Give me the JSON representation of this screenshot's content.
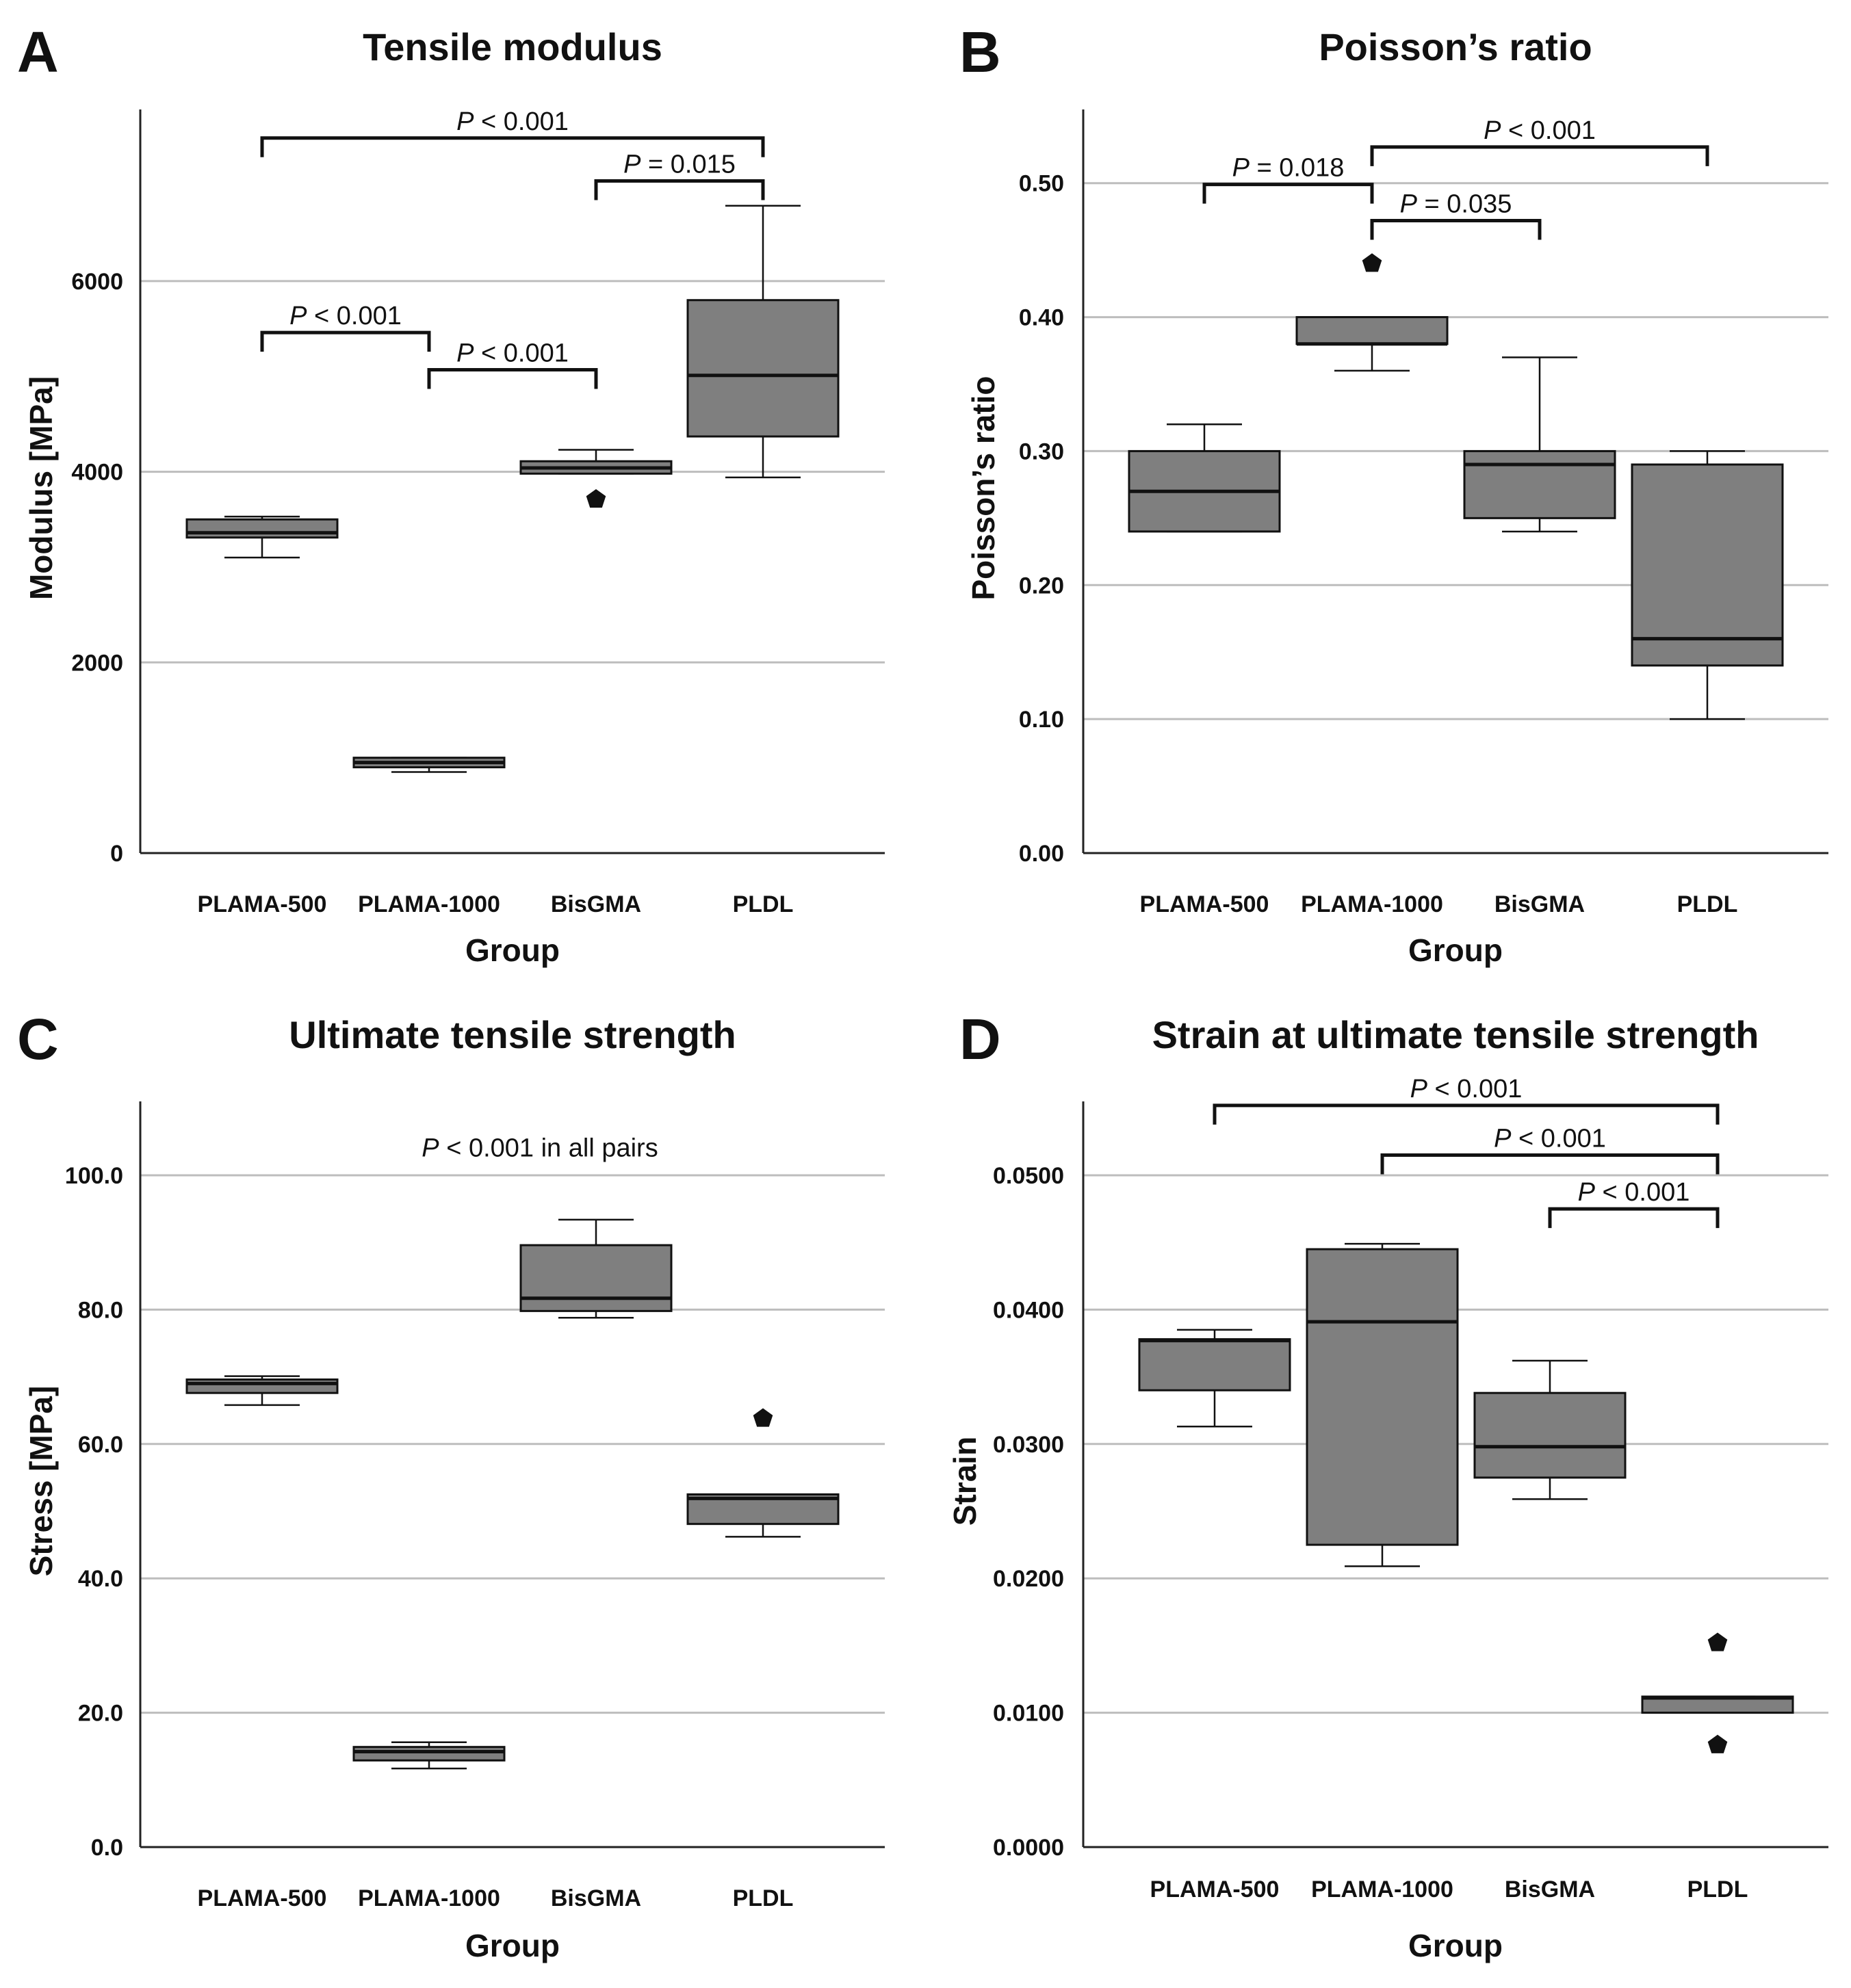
{
  "chart_data": [
    {
      "panel": "A",
      "type": "box",
      "title": "Tensile modulus",
      "xlabel": "Group",
      "ylabel": "Modulus [MPa]",
      "ylim": [
        0,
        7800
      ],
      "yticks": [
        0,
        2000,
        4000,
        6000
      ],
      "ytick_labels": [
        "0",
        "2000",
        "4000",
        "6000"
      ],
      "grid": true,
      "categories": [
        "PLAMA-500",
        "PLAMA-1000",
        "BisGMA",
        "PLDL"
      ],
      "boxes": [
        {
          "category": "PLAMA-500",
          "whisker_low": 3100,
          "q1": 3310,
          "median": 3360,
          "q3": 3500,
          "whisker_high": 3530,
          "outliers": []
        },
        {
          "category": "PLAMA-1000",
          "whisker_low": 850,
          "q1": 900,
          "median": 950,
          "q3": 1000,
          "whisker_high": 1000,
          "outliers": []
        },
        {
          "category": "BisGMA",
          "whisker_low": 3980,
          "q1": 3980,
          "median": 4040,
          "q3": 4110,
          "whisker_high": 4230,
          "outliers": [
            3710
          ]
        },
        {
          "category": "PLDL",
          "whisker_low": 3940,
          "q1": 4370,
          "median": 5010,
          "q3": 5800,
          "whisker_high": 6790,
          "outliers": []
        }
      ],
      "annotations": [
        {
          "from": "PLAMA-500",
          "to": "PLDL",
          "level": 7500,
          "label_prefix": "P",
          "label_rest": " < 0.001"
        },
        {
          "from": "BisGMA",
          "to": "PLDL",
          "level": 7050,
          "label_prefix": "P",
          "label_rest": " = 0.015"
        },
        {
          "from": "PLAMA-500",
          "to": "PLAMA-1000",
          "level": 5460,
          "label_prefix": "P",
          "label_rest": " < 0.001"
        },
        {
          "from": "PLAMA-1000",
          "to": "BisGMA",
          "level": 5070,
          "label_prefix": "P",
          "label_rest": " < 0.001"
        }
      ],
      "note": null
    },
    {
      "panel": "B",
      "type": "box",
      "title": "Poisson’s ratio",
      "xlabel": "Group",
      "ylabel": "Poisson’s ratio",
      "ylim": [
        0,
        0.555
      ],
      "yticks": [
        0,
        0.1,
        0.2,
        0.3,
        0.4,
        0.5
      ],
      "ytick_labels": [
        "0.00",
        "0.10",
        "0.20",
        "0.30",
        "0.40",
        "0.50"
      ],
      "grid": true,
      "categories": [
        "PLAMA-500",
        "PLAMA-1000",
        "BisGMA",
        "PLDL"
      ],
      "boxes": [
        {
          "category": "PLAMA-500",
          "whisker_low": 0.24,
          "q1": 0.24,
          "median": 0.27,
          "q3": 0.3,
          "whisker_high": 0.32,
          "outliers": []
        },
        {
          "category": "PLAMA-1000",
          "whisker_low": 0.36,
          "q1": 0.38,
          "median": 0.38,
          "q3": 0.4,
          "whisker_high": 0.4,
          "outliers": [
            0.44
          ]
        },
        {
          "category": "BisGMA",
          "whisker_low": 0.24,
          "q1": 0.25,
          "median": 0.29,
          "q3": 0.3,
          "whisker_high": 0.37,
          "outliers": []
        },
        {
          "category": "PLDL",
          "whisker_low": 0.1,
          "q1": 0.14,
          "median": 0.16,
          "q3": 0.29,
          "whisker_high": 0.3,
          "outliers": []
        }
      ],
      "annotations": [
        {
          "from": "PLAMA-1000",
          "to": "PLDL",
          "level": 0.527,
          "label_prefix": "P",
          "label_rest": " < 0.001"
        },
        {
          "from": "PLAMA-500",
          "to": "PLAMA-1000",
          "level": 0.499,
          "label_prefix": "P",
          "label_rest": " = 0.018"
        },
        {
          "from": "PLAMA-1000",
          "to": "BisGMA",
          "level": 0.472,
          "label_prefix": "P",
          "label_rest": " = 0.035"
        }
      ],
      "note": null
    },
    {
      "panel": "C",
      "type": "box",
      "title": "Ultimate tensile strength",
      "xlabel": "Group",
      "ylabel": "Stress [MPa]",
      "ylim": [
        0,
        111
      ],
      "yticks": [
        0,
        20,
        40,
        60,
        80,
        100
      ],
      "ytick_labels": [
        "0.0",
        "20.0",
        "40.0",
        "60.0",
        "80.0",
        "100.0"
      ],
      "grid": true,
      "categories": [
        "PLAMA-500",
        "PLAMA-1000",
        "BisGMA",
        "PLDL"
      ],
      "boxes": [
        {
          "category": "PLAMA-500",
          "whisker_low": 65.8,
          "q1": 67.6,
          "median": 69.0,
          "q3": 69.6,
          "whisker_high": 70.1,
          "outliers": []
        },
        {
          "category": "PLAMA-1000",
          "whisker_low": 11.7,
          "q1": 12.9,
          "median": 14.2,
          "q3": 14.9,
          "whisker_high": 15.6,
          "outliers": []
        },
        {
          "category": "BisGMA",
          "whisker_low": 78.8,
          "q1": 79.8,
          "median": 81.7,
          "q3": 89.6,
          "whisker_high": 93.4,
          "outliers": []
        },
        {
          "category": "PLDL",
          "whisker_low": 46.2,
          "q1": 48.1,
          "median": 51.9,
          "q3": 52.5,
          "whisker_high": 52.5,
          "outliers": [
            63.8
          ]
        }
      ],
      "annotations": [],
      "note": {
        "label_prefix": "P",
        "label_rest": " < 0.001 in all pairs",
        "level": 104
      }
    },
    {
      "panel": "D",
      "type": "box",
      "title": "Strain at ultimate tensile strength",
      "xlabel": "Group",
      "ylabel": "Strain",
      "ylim": [
        0,
        0.0555
      ],
      "yticks": [
        0,
        0.01,
        0.02,
        0.03,
        0.04,
        0.05
      ],
      "ytick_labels": [
        "0.0000",
        "0.0100",
        "0.0200",
        "0.0300",
        "0.0400",
        "0.0500"
      ],
      "grid": true,
      "categories": [
        "PLAMA-500",
        "PLAMA-1000",
        "BisGMA",
        "PLDL"
      ],
      "boxes": [
        {
          "category": "PLAMA-500",
          "whisker_low": 0.0313,
          "q1": 0.034,
          "median": 0.0377,
          "q3": 0.0378,
          "whisker_high": 0.0385,
          "outliers": []
        },
        {
          "category": "PLAMA-1000",
          "whisker_low": 0.0209,
          "q1": 0.0225,
          "median": 0.0391,
          "q3": 0.0445,
          "whisker_high": 0.0449,
          "outliers": []
        },
        {
          "category": "BisGMA",
          "whisker_low": 0.0259,
          "q1": 0.0275,
          "median": 0.0298,
          "q3": 0.0338,
          "whisker_high": 0.0362,
          "outliers": []
        },
        {
          "category": "PLDL",
          "whisker_low": 0.01,
          "q1": 0.01,
          "median": 0.0111,
          "q3": 0.0112,
          "whisker_high": 0.0112,
          "outliers": [
            0.0152,
            0.0076
          ]
        }
      ],
      "annotations": [
        {
          "from": "PLAMA-500",
          "to": "PLDL",
          "level": 0.0552,
          "label_prefix": "P",
          "label_rest": " < 0.001"
        },
        {
          "from": "PLAMA-1000",
          "to": "PLDL",
          "level": 0.0515,
          "label_prefix": "P",
          "label_rest": " < 0.001"
        },
        {
          "from": "BisGMA",
          "to": "PLDL",
          "level": 0.0475,
          "label_prefix": "P",
          "label_rest": " < 0.001"
        }
      ],
      "note": null
    }
  ],
  "colors": {
    "box_fill": "#7f7f7f",
    "line": "#111111",
    "grid": "#bdbdbd",
    "axis": "#222222",
    "background": "#ffffff"
  }
}
